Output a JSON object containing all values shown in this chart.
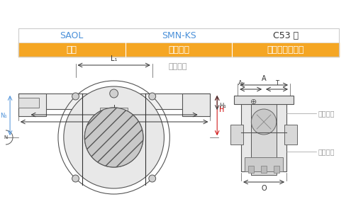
{
  "title": "轴承数据",
  "bg_color": "#ffffff",
  "table_header_bg": "#F5A623",
  "table_header_text_color": "#ffffff",
  "table_header_font_size": 9,
  "table_data_font_size": 9,
  "table_headers": [
    "单元",
    "轴承编号",
    "尺寸及额定载荷"
  ],
  "table_row": [
    "SAOL",
    "SMN-KS",
    "C53 页"
  ],
  "title_color": "#999999",
  "title_font_size": 8,
  "row_text_color_col0": "#4a90d9",
  "row_text_color_col1": "#4a90d9",
  "row_text_color_col2": "#333333",
  "label_color_blue": "#4a90d9",
  "label_color_red": "#cc0000",
  "label_color_black": "#333333",
  "side_label_color": "#999999",
  "side_labels": [
    "浮动安装",
    "固定安装"
  ]
}
